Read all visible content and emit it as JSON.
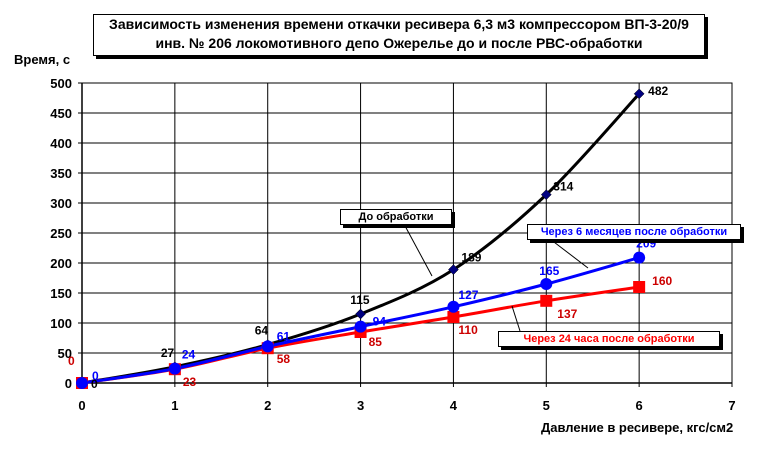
{
  "chart_data": {
    "type": "line",
    "title": "Зависимость изменения времени откачки ресивера 6,3 м3 компрессором ВП-3-20/9",
    "subtitle": "инв. № 206 локомотивного депо Ожерелье до и после РВС-обработки",
    "xlabel": "Давление в ресивере, кгс/см2",
    "ylabel": "Время, с",
    "xlim": [
      0,
      7
    ],
    "ylim": [
      0,
      500
    ],
    "xticks": [
      "0",
      "1",
      "2",
      "3",
      "4",
      "5",
      "6",
      "7"
    ],
    "yticks": [
      "0",
      "50",
      "100",
      "150",
      "200",
      "250",
      "300",
      "350",
      "400",
      "450",
      "500"
    ],
    "grid": true,
    "series": [
      {
        "name": "До обработки",
        "color": "#000000",
        "marker": "diamond",
        "marker_color": "#000080",
        "label_color": "#000000",
        "x": [
          0,
          1,
          2,
          3,
          4,
          5,
          6
        ],
        "values": [
          0,
          27,
          64,
          115,
          189,
          314,
          482
        ],
        "labels": [
          "0",
          "27",
          "64",
          "115",
          "189",
          "314",
          "482"
        ]
      },
      {
        "name": "Через 6 месяцев после обработки",
        "color": "#0000ff",
        "marker": "circle",
        "marker_color": "#0000ff",
        "label_color": "#0000ff",
        "x": [
          0,
          1,
          2,
          3,
          4,
          5,
          6
        ],
        "values": [
          0,
          24,
          61,
          94,
          127,
          165,
          209
        ],
        "labels": [
          "0",
          "24",
          "61",
          "94",
          "127",
          "165",
          "209"
        ]
      },
      {
        "name": "Через 24 часа после обработки",
        "color": "#ff0000",
        "marker": "square",
        "marker_color": "#ff0000",
        "label_color": "#cc0000",
        "x": [
          0,
          1,
          2,
          3,
          4,
          5,
          6
        ],
        "values": [
          0,
          23,
          58,
          85,
          110,
          137,
          160
        ],
        "labels": [
          "0",
          "23",
          "58",
          "85",
          "110",
          "137",
          "160"
        ]
      }
    ],
    "legend": "callouts"
  }
}
